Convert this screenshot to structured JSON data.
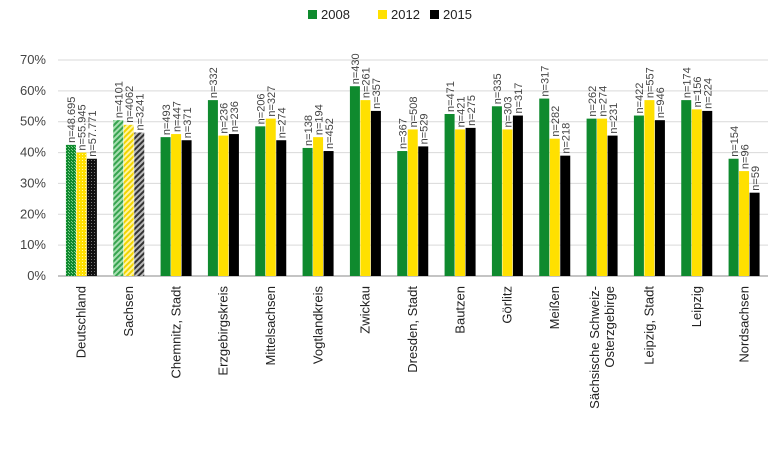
{
  "chart_data": {
    "type": "bar",
    "title": "",
    "xlabel": "",
    "ylabel": "",
    "ylim": [
      0,
      70
    ],
    "yticks": [
      "0%",
      "10%",
      "20%",
      "30%",
      "40%",
      "50%",
      "60%",
      "70%"
    ],
    "grid": true,
    "legend_position": "top-center",
    "categories": [
      "Deutschland",
      "Sachsen",
      "Chemnitz, Stadt",
      "Erzgebirgskreis",
      "Mittelsachsen",
      "Vogtlandkreis",
      "Zwickau",
      "Dresden, Stadt",
      "Bautzen",
      "Görlitz",
      "Meißen",
      "Sächsische Schweiz-Osterzgebirge",
      "Leipzig, Stadt",
      "Leipzig",
      "Nordsachsen"
    ],
    "patterned_categories": [
      "Deutschland",
      "Sachsen"
    ],
    "series": [
      {
        "name": "2008",
        "color": "#0f8a2e",
        "values": [
          42.5,
          50.5,
          45.0,
          57.0,
          48.5,
          41.5,
          61.5,
          40.5,
          52.5,
          55.0,
          57.5,
          51.0,
          52.0,
          57.0,
          38.0
        ],
        "n_labels": [
          "n=48.695",
          "n=4101",
          "n=493",
          "n=332",
          "n=206",
          "n=138",
          "n=430",
          "n=367",
          "n=471",
          "n=335",
          "n=317",
          "n=262",
          "n=422",
          "n=174",
          "n=154"
        ]
      },
      {
        "name": "2012",
        "color": "#ffe000",
        "values": [
          40.0,
          49.0,
          46.0,
          45.5,
          51.0,
          45.0,
          57.0,
          47.5,
          47.5,
          47.5,
          44.5,
          51.0,
          57.0,
          54.0,
          34.0
        ],
        "n_labels": [
          "n=55.945",
          "n=4062",
          "n=447",
          "n=236",
          "n=327",
          "n=194",
          "n=261",
          "n=508",
          "n=421",
          "n=303",
          "n=282",
          "n=274",
          "n=557",
          "n=156",
          "n=96"
        ]
      },
      {
        "name": "2015",
        "color": "#000000",
        "values": [
          38.0,
          46.5,
          44.0,
          46.0,
          44.0,
          40.5,
          53.5,
          42.0,
          48.0,
          52.0,
          39.0,
          45.5,
          50.5,
          53.5,
          27.0
        ],
        "n_labels": [
          "n=57.771",
          "n=3241",
          "n=371",
          "n=236",
          "n=274",
          "n=452",
          "n=357",
          "n=529",
          "n=275",
          "n=317",
          "n=218",
          "n=231",
          "n=946",
          "n=224",
          "n=59"
        ]
      }
    ]
  }
}
